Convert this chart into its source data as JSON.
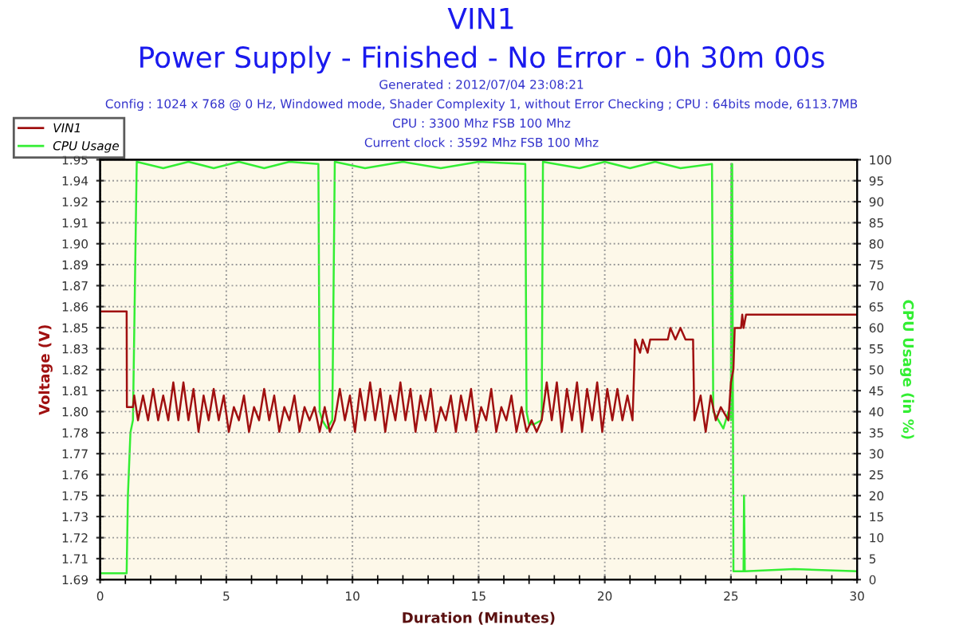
{
  "chart_data": {
    "type": "line",
    "title": "VIN1",
    "subtitle": "Power Supply - Finished - No Error - 0h 30m 00s",
    "annotations": [
      "Generated : 2012/07/04 23:08:21",
      "Config : 1024 x 768 @ 0 Hz, Windowed mode, Shader Complexity 1, without Error Checking ; CPU : 64bits mode, 6113.7MB",
      "CPU : 3300 Mhz FSB 100 Mhz",
      "Current clock : 3592 Mhz FSB 100 Mhz"
    ],
    "xlabel": "Duration (Minutes)",
    "ylabel": "Voltage (V)",
    "y2label": "CPU Usage (in %)",
    "xlim": [
      0,
      30
    ],
    "xticks": [
      0,
      {
        "value": 1,
        "label": null
      },
      {
        "value": 2,
        "label": null
      },
      {
        "value": 3,
        "label": null
      },
      {
        "value": 4,
        "label": null
      },
      5,
      {
        "value": 6,
        "label": null
      },
      {
        "value": 7,
        "label": null
      },
      {
        "value": 8,
        "label": null
      },
      {
        "value": 9,
        "label": null
      },
      10,
      {
        "value": 11,
        "label": null
      },
      {
        "value": 12,
        "label": null
      },
      {
        "value": 13,
        "label": null
      },
      {
        "value": 14,
        "label": null
      },
      15,
      {
        "value": 16,
        "label": null
      },
      {
        "value": 17,
        "label": null
      },
      {
        "value": 18,
        "label": null
      },
      {
        "value": 19,
        "label": null
      },
      20,
      {
        "value": 21,
        "label": null
      },
      {
        "value": 22,
        "label": null
      },
      {
        "value": 23,
        "label": null
      },
      {
        "value": 24,
        "label": null
      },
      25,
      {
        "value": 26,
        "label": null
      },
      {
        "value": 27,
        "label": null
      },
      {
        "value": 28,
        "label": null
      },
      {
        "value": 29,
        "label": null
      },
      30
    ],
    "ylim": [
      1.6945,
      1.9489
    ],
    "yticks": [
      {
        "value": 1.6945,
        "label": "1.69"
      },
      {
        "value": 1.7072,
        "label": "1.71"
      },
      {
        "value": 1.7199,
        "label": "1.72"
      },
      {
        "value": 1.7327,
        "label": "1.73"
      },
      {
        "value": 1.7454,
        "label": "1.75"
      },
      {
        "value": 1.7581,
        "label": "1.76"
      },
      {
        "value": 1.7708,
        "label": "1.77"
      },
      {
        "value": 1.7835,
        "label": "1.78"
      },
      {
        "value": 1.7963,
        "label": "1.80"
      },
      {
        "value": 1.809,
        "label": "1.81"
      },
      {
        "value": 1.8217,
        "label": "1.82"
      },
      {
        "value": 1.8344,
        "label": "1.83"
      },
      {
        "value": 1.8471,
        "label": "1.85"
      },
      {
        "value": 1.8599,
        "label": "1.86"
      },
      {
        "value": 1.8726,
        "label": "1.87"
      },
      {
        "value": 1.8853,
        "label": "1.89"
      },
      {
        "value": 1.898,
        "label": "1.90"
      },
      {
        "value": 1.9107,
        "label": "1.91"
      },
      {
        "value": 1.9235,
        "label": "1.92"
      },
      {
        "value": 1.9362,
        "label": "1.94"
      },
      {
        "value": 1.9489,
        "label": "1.95"
      }
    ],
    "y2lim": [
      0,
      100
    ],
    "y2ticks": [
      0,
      5,
      10,
      15,
      20,
      25,
      30,
      35,
      40,
      45,
      50,
      55,
      60,
      65,
      70,
      75,
      80,
      85,
      90,
      95,
      100
    ],
    "grid": true,
    "legend": "top left",
    "marker": "none",
    "line_style": "solid",
    "series": [
      {
        "name": "VIN1",
        "color": "#a01010",
        "x": [
          0,
          1.05,
          1.06,
          1.3,
          1.35,
          1.5,
          1.7,
          1.9,
          2.1,
          2.3,
          2.5,
          2.7,
          2.9,
          3.1,
          3.3,
          3.5,
          3.7,
          3.9,
          4.1,
          4.3,
          4.5,
          4.7,
          4.9,
          5.1,
          5.3,
          5.5,
          5.7,
          5.9,
          6.1,
          6.3,
          6.5,
          6.7,
          6.9,
          7.1,
          7.3,
          7.5,
          7.7,
          7.9,
          8.1,
          8.3,
          8.5,
          8.7,
          8.9,
          9.1,
          9.3,
          9.5,
          9.7,
          9.9,
          10.1,
          10.3,
          10.5,
          10.7,
          10.9,
          11.1,
          11.3,
          11.5,
          11.7,
          11.9,
          12.1,
          12.3,
          12.5,
          12.7,
          12.9,
          13.1,
          13.3,
          13.5,
          13.7,
          13.9,
          14.1,
          14.3,
          14.5,
          14.7,
          14.9,
          15.1,
          15.3,
          15.5,
          15.7,
          15.9,
          16.1,
          16.3,
          16.5,
          16.7,
          16.9,
          17.1,
          17.3,
          17.5,
          17.7,
          17.9,
          18.1,
          18.3,
          18.5,
          18.7,
          18.9,
          19.1,
          19.3,
          19.5,
          19.7,
          19.9,
          20.1,
          20.3,
          20.5,
          20.7,
          20.9,
          21.1,
          21.15,
          21.2,
          21.4,
          21.5,
          21.7,
          21.8,
          22.5,
          22.6,
          22.8,
          23.0,
          23.2,
          23.5,
          23.55,
          23.8,
          24.0,
          24.2,
          24.4,
          24.6,
          24.9,
          25.0,
          25.1,
          25.15,
          25.4,
          25.45,
          25.5,
          25.6,
          30
        ],
        "values": [
          1.857,
          1.857,
          1.799,
          1.799,
          1.806,
          1.791,
          1.806,
          1.791,
          1.81,
          1.791,
          1.806,
          1.791,
          1.814,
          1.791,
          1.814,
          1.791,
          1.81,
          1.784,
          1.806,
          1.791,
          1.81,
          1.791,
          1.806,
          1.784,
          1.799,
          1.791,
          1.806,
          1.784,
          1.799,
          1.791,
          1.81,
          1.791,
          1.806,
          1.784,
          1.799,
          1.791,
          1.806,
          1.784,
          1.799,
          1.791,
          1.799,
          1.784,
          1.799,
          1.784,
          1.791,
          1.81,
          1.791,
          1.806,
          1.784,
          1.81,
          1.791,
          1.814,
          1.791,
          1.81,
          1.784,
          1.806,
          1.791,
          1.814,
          1.791,
          1.81,
          1.784,
          1.806,
          1.791,
          1.81,
          1.784,
          1.799,
          1.791,
          1.806,
          1.784,
          1.806,
          1.791,
          1.81,
          1.784,
          1.799,
          1.791,
          1.81,
          1.784,
          1.799,
          1.791,
          1.806,
          1.784,
          1.799,
          1.784,
          1.791,
          1.784,
          1.791,
          1.814,
          1.791,
          1.814,
          1.784,
          1.81,
          1.791,
          1.814,
          1.784,
          1.81,
          1.791,
          1.814,
          1.784,
          1.81,
          1.791,
          1.81,
          1.791,
          1.806,
          1.791,
          1.814,
          1.84,
          1.832,
          1.84,
          1.832,
          1.84,
          1.84,
          1.847,
          1.84,
          1.847,
          1.84,
          1.84,
          1.791,
          1.806,
          1.784,
          1.806,
          1.791,
          1.799,
          1.791,
          1.814,
          1.822,
          1.847,
          1.847,
          1.855,
          1.847,
          1.855,
          1.855
        ]
      },
      {
        "name": "CPU Usage",
        "color": "#33ee33",
        "axis": "y2",
        "x": [
          0,
          1.05,
          1.1,
          1.2,
          1.3,
          1.45,
          2.5,
          3.5,
          4.5,
          5.5,
          6.5,
          7.5,
          8.65,
          8.7,
          8.8,
          9.0,
          9.2,
          9.3,
          10.5,
          12.0,
          13.5,
          15.0,
          16.85,
          16.9,
          17.0,
          17.2,
          17.5,
          17.55,
          19.0,
          20.0,
          21.0,
          22.0,
          23.0,
          24.25,
          24.3,
          24.5,
          24.7,
          24.9,
          25.0,
          25.02,
          25.05,
          25.1,
          25.5,
          25.52,
          25.55,
          27.5,
          30
        ],
        "values": [
          1.5,
          1.5,
          20,
          35,
          38,
          99.5,
          98,
          99.5,
          98,
          99.5,
          98,
          99.5,
          99,
          40,
          38,
          36,
          38,
          99.5,
          98,
          99.5,
          98,
          99.5,
          99,
          40,
          37,
          37,
          38,
          99.5,
          98,
          99.5,
          98,
          99.5,
          98,
          99,
          40,
          38,
          36,
          40,
          38,
          99,
          99,
          2,
          2,
          20,
          2,
          2.5,
          2
        ]
      }
    ]
  }
}
